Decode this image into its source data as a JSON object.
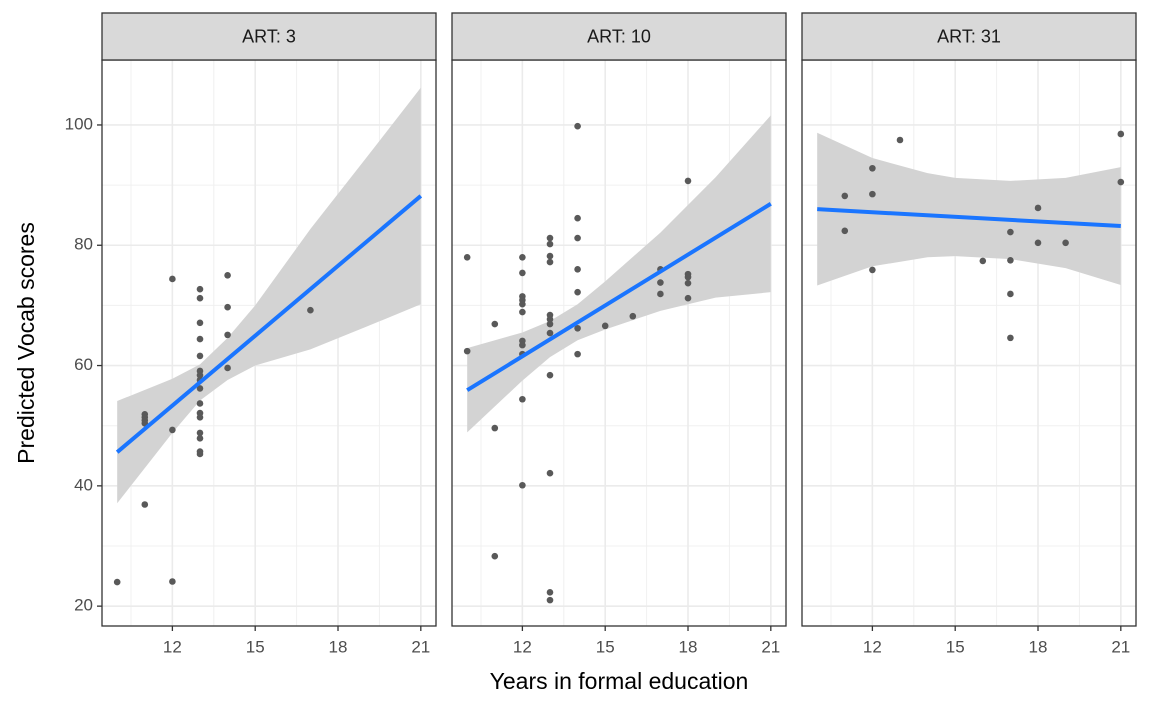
{
  "chart_data": {
    "type": "scatter",
    "xlabel": "Years in formal education",
    "ylabel": "Predicted Vocab scores",
    "xlim": [
      9.45,
      21.55
    ],
    "ylim": [
      16.7,
      110.8
    ],
    "xticks": [
      12,
      15,
      18,
      21
    ],
    "yticks": [
      20,
      40,
      60,
      80,
      100
    ],
    "grid": true,
    "point_color": "#595959",
    "fit_color": "#1a75ff",
    "band_color": "#d3d3d3",
    "facets": [
      {
        "title": "ART: 3",
        "x": [
          10,
          11,
          11,
          11,
          11,
          11,
          12,
          12,
          12,
          13,
          13,
          13,
          13,
          13,
          13,
          13,
          13,
          13,
          13,
          13,
          13,
          13,
          13,
          13,
          13,
          14,
          14,
          14,
          14,
          17
        ],
        "y": [
          24.0,
          51.9,
          51.4,
          50.9,
          50.4,
          36.9,
          74.4,
          49.3,
          24.1,
          72.7,
          71.2,
          67.1,
          64.4,
          61.6,
          59.1,
          58.4,
          57.6,
          56.2,
          53.7,
          52.1,
          51.4,
          48.8,
          47.9,
          45.7,
          45.3,
          75.0,
          69.7,
          65.1,
          59.6,
          69.2
        ],
        "fit": {
          "x": [
            10,
            21
          ],
          "y": [
            45.6,
            88.2
          ]
        },
        "band": {
          "x": [
            10,
            12,
            13,
            14,
            15,
            17,
            19,
            21
          ],
          "lower": [
            37.1,
            48.8,
            54.2,
            57.6,
            60.0,
            62.7,
            66.4,
            70.2
          ],
          "upper": [
            54.1,
            57.8,
            60.2,
            64.6,
            70.0,
            82.7,
            94.4,
            106.2
          ]
        }
      },
      {
        "title": "ART: 10",
        "x": [
          10,
          10,
          11,
          11,
          11,
          12,
          12,
          12,
          12,
          12,
          12,
          12,
          12,
          12,
          12,
          12,
          13,
          13,
          13,
          13,
          13,
          13,
          13,
          13,
          13,
          13,
          13,
          13,
          14,
          14,
          14,
          14,
          14,
          14,
          14,
          15,
          16,
          17,
          17,
          17,
          18,
          18,
          18,
          18,
          18
        ],
        "y": [
          78.0,
          62.4,
          66.9,
          49.6,
          28.3,
          78.0,
          75.4,
          71.5,
          70.9,
          70.2,
          68.9,
          64.1,
          63.4,
          61.9,
          54.4,
          40.1,
          81.2,
          80.2,
          78.2,
          77.2,
          68.4,
          67.7,
          66.9,
          65.4,
          58.4,
          42.1,
          22.3,
          21.0,
          99.8,
          84.5,
          81.2,
          76.0,
          72.2,
          66.2,
          61.9,
          66.6,
          68.2,
          76.0,
          73.8,
          71.9,
          90.7,
          75.2,
          74.7,
          73.7,
          71.2
        ],
        "fit": {
          "x": [
            10,
            21
          ],
          "y": [
            55.9,
            86.9
          ]
        },
        "band": {
          "x": [
            10,
            12,
            13,
            14,
            15,
            17,
            19,
            21
          ],
          "lower": [
            48.9,
            57.5,
            61.4,
            64.2,
            66.0,
            69.1,
            71.3,
            72.2
          ],
          "upper": [
            62.9,
            65.5,
            67.4,
            70.2,
            74.0,
            82.1,
            91.3,
            101.6
          ]
        }
      },
      {
        "title": "ART: 31",
        "x": [
          11,
          11,
          12,
          12,
          12,
          13,
          16,
          17,
          17,
          17,
          17,
          18,
          18,
          19,
          21,
          21
        ],
        "y": [
          88.2,
          82.4,
          92.8,
          88.5,
          75.9,
          97.5,
          77.4,
          82.2,
          77.5,
          71.9,
          64.6,
          86.2,
          80.4,
          80.4,
          98.5,
          90.5
        ],
        "fit": {
          "x": [
            10,
            21
          ],
          "y": [
            86.0,
            83.2
          ]
        },
        "band": {
          "x": [
            10,
            12,
            14,
            15,
            17,
            19,
            21
          ],
          "lower": [
            73.3,
            76.5,
            78.0,
            78.2,
            77.7,
            76.2,
            73.4
          ],
          "upper": [
            98.7,
            94.5,
            92.0,
            91.2,
            90.7,
            91.2,
            93.0
          ]
        }
      }
    ]
  }
}
